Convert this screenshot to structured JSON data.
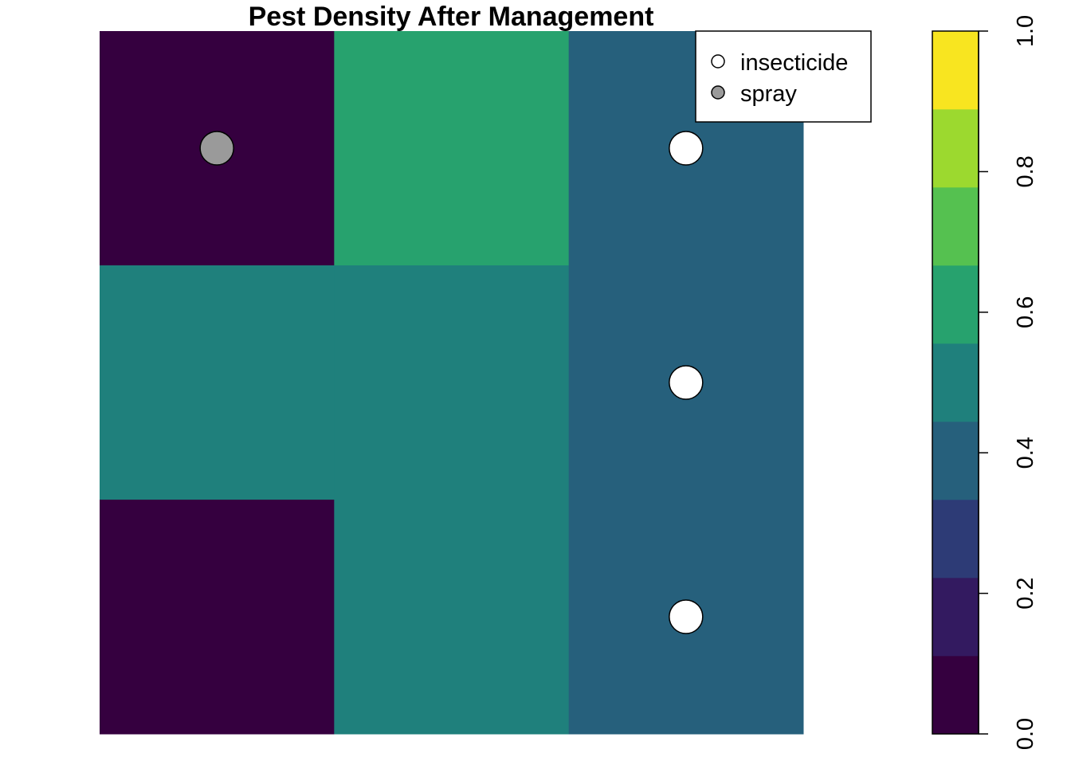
{
  "chart_data": {
    "type": "heatmap",
    "title": "Pest Density After Management",
    "grid": {
      "cols": 3,
      "rows": 3,
      "values": [
        [
          0.0,
          0.6,
          0.4
        ],
        [
          0.5,
          0.5,
          0.4
        ],
        [
          0.0,
          0.5,
          0.4
        ]
      ]
    },
    "points": [
      {
        "col": 0,
        "row": 0,
        "type": "spray"
      },
      {
        "col": 2,
        "row": 0,
        "type": "insecticide"
      },
      {
        "col": 2,
        "row": 1,
        "type": "insecticide"
      },
      {
        "col": 2,
        "row": 2,
        "type": "insecticide"
      }
    ],
    "legend": {
      "position": "top-right",
      "entries": [
        {
          "label": "insecticide",
          "fill": "#ffffff"
        },
        {
          "label": "spray",
          "fill": "#9a9a9a"
        }
      ]
    },
    "colorbar": {
      "range": [
        0.0,
        1.0
      ],
      "ticks": [
        "0.0",
        "0.2",
        "0.4",
        "0.6",
        "0.8",
        "1.0"
      ],
      "colors": [
        "#35003f",
        "#331a60",
        "#2d3b76",
        "#26607c",
        "#1f807c",
        "#27a26e",
        "#55c150",
        "#9cd92f",
        "#f8e520"
      ]
    },
    "grid_lines": false
  }
}
